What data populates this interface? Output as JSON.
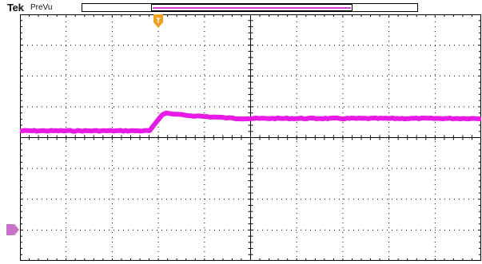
{
  "header": {
    "brand": "Tek",
    "acquisition_mode": "PreVu"
  },
  "colors": {
    "channel_trace": "#e81be6",
    "trigger_marker": "#f0a020",
    "channel_marker": "#c873c8",
    "graticule": "#000000"
  },
  "markers": {
    "trigger_position_label": "T",
    "channel_marker_icon": "channel-ground-marker-icon"
  },
  "graticule": {
    "horizontal_divisions": 10,
    "vertical_divisions": 8
  },
  "trace": {
    "shape": "step-with-overshoot",
    "baseline_level_div": 0.22,
    "peak_level_div": 0.8,
    "settled_level_div": 0.62
  }
}
